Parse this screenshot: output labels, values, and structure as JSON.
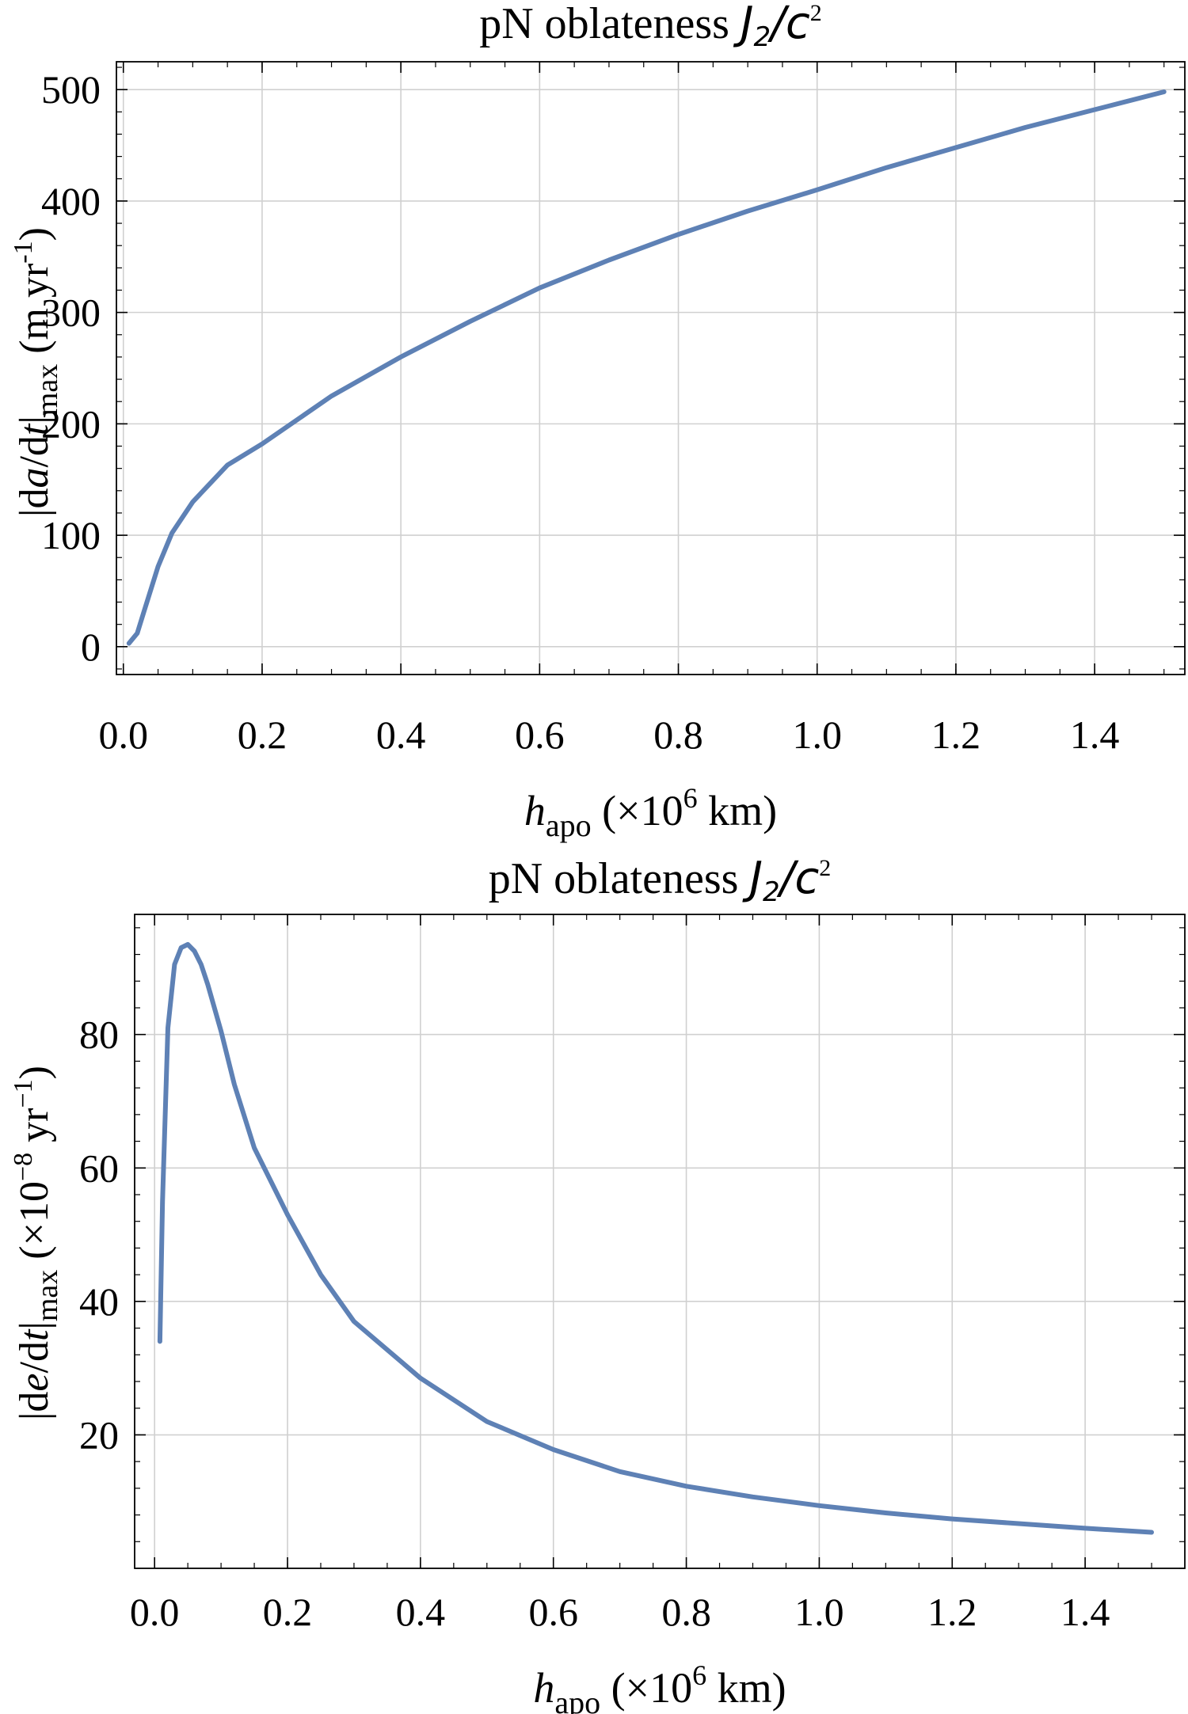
{
  "chart_data": [
    {
      "type": "line",
      "title": "pN oblateness",
      "title_math": {
        "J": "J",
        "sub": "2",
        "slash": "/",
        "c": "c",
        "sup": "2"
      },
      "xlabel": {
        "var": "h",
        "sub": "apo",
        "prefix": "(×10",
        "exp": "6",
        "suffix": " km)"
      },
      "ylabel": {
        "pre": "|d",
        "var": "a",
        "mid": "/d",
        "var2": "t",
        "post": "|",
        "sub": "max",
        "units": "(m  yr",
        "units_exp": "-1",
        "units_close": ")"
      },
      "xlim": [
        -0.01,
        1.53
      ],
      "ylim": [
        -25,
        525
      ],
      "xticks": [
        0.0,
        0.2,
        0.4,
        0.6,
        0.8,
        1.0,
        1.2,
        1.4
      ],
      "xtick_labels": [
        "0.0",
        "0.2",
        "0.4",
        "0.6",
        "0.8",
        "1.0",
        "1.2",
        "1.4"
      ],
      "yticks": [
        0,
        100,
        200,
        300,
        400,
        500
      ],
      "ytick_labels": [
        "0",
        "100",
        "200",
        "300",
        "400",
        "500"
      ],
      "grid": true,
      "series": [
        {
          "color": "#5e81b5",
          "x": [
            0.008,
            0.02,
            0.03,
            0.05,
            0.07,
            0.1,
            0.15,
            0.2,
            0.3,
            0.4,
            0.5,
            0.6,
            0.7,
            0.8,
            0.9,
            1.0,
            1.1,
            1.2,
            1.3,
            1.4,
            1.5
          ],
          "y": [
            3,
            12,
            32,
            72,
            102,
            130,
            163,
            182,
            225,
            260,
            292,
            322,
            347,
            370,
            391,
            410,
            430,
            448,
            466,
            482,
            498
          ]
        }
      ]
    },
    {
      "type": "line",
      "title": "pN oblateness",
      "title_math": {
        "J": "J",
        "sub": "2",
        "slash": "/",
        "c": "c",
        "sup": "2"
      },
      "xlabel": {
        "var": "h",
        "sub": "apo",
        "prefix": "(×10",
        "exp": "6",
        "suffix": " km)"
      },
      "ylabel": {
        "pre": "|d",
        "var": "e",
        "mid": "/d",
        "var2": "t",
        "post": "|",
        "sub": "max",
        "units": "(×10",
        "units_exp": "−8",
        "units_close": " yr",
        "units_exp2": "−1",
        "units_end": ")"
      },
      "xlim": [
        -0.03,
        1.55
      ],
      "ylim": [
        0,
        98
      ],
      "xticks": [
        0.0,
        0.2,
        0.4,
        0.6,
        0.8,
        1.0,
        1.2,
        1.4
      ],
      "xtick_labels": [
        "0.0",
        "0.2",
        "0.4",
        "0.6",
        "0.8",
        "1.0",
        "1.2",
        "1.4"
      ],
      "yticks": [
        20,
        40,
        60,
        80
      ],
      "ytick_labels": [
        "20",
        "40",
        "60",
        "80"
      ],
      "grid": true,
      "series": [
        {
          "color": "#5e81b5",
          "x": [
            0.008,
            0.012,
            0.02,
            0.03,
            0.04,
            0.05,
            0.06,
            0.07,
            0.08,
            0.1,
            0.12,
            0.15,
            0.2,
            0.25,
            0.3,
            0.4,
            0.5,
            0.6,
            0.7,
            0.8,
            0.9,
            1.0,
            1.1,
            1.2,
            1.3,
            1.4,
            1.5
          ],
          "y": [
            34,
            55,
            81,
            90.5,
            93,
            93.5,
            92.5,
            90.5,
            87.5,
            80.5,
            72.5,
            63,
            53,
            44,
            37,
            28.5,
            22,
            17.8,
            14.5,
            12.3,
            10.7,
            9.4,
            8.3,
            7.4,
            6.7,
            6.0,
            5.4
          ]
        }
      ]
    }
  ]
}
